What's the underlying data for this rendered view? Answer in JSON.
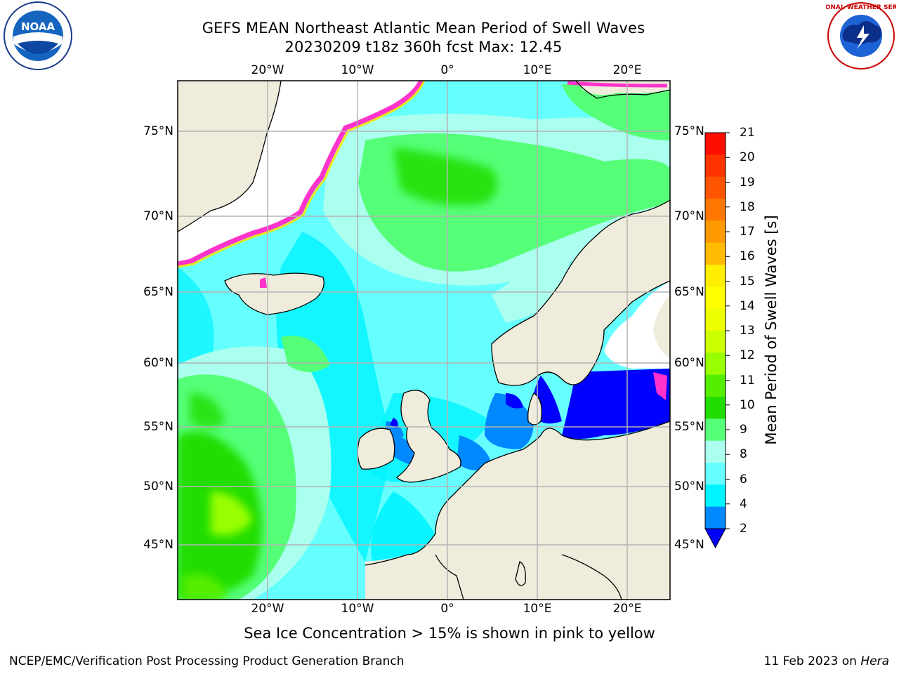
{
  "header": {
    "title_line1": "GEFS MEAN Northeast Atlantic Mean Period of Swell Waves",
    "title_line2": "20230209 t18z 360h fcst   Max: 12.45"
  },
  "logos": {
    "left": {
      "name": "NOAA",
      "text": "NOAA"
    },
    "right": {
      "name": "National Weather Service",
      "text": "NATIONAL WEATHER SERVICE"
    }
  },
  "map": {
    "lon_labels_top": [
      "20°W",
      "10°W",
      "0°",
      "10°E",
      "20°E"
    ],
    "lon_labels_bottom": [
      "20°W",
      "10°W",
      "0°",
      "10°E",
      "20°E"
    ],
    "lat_labels_left": [
      "75°N",
      "70°N",
      "65°N",
      "60°N",
      "55°N",
      "50°N",
      "45°N"
    ],
    "lat_labels_right": [
      "75°N",
      "70°N",
      "65°N",
      "60°N",
      "55°N",
      "50°N",
      "45°N"
    ],
    "colors": {
      "land": "#efecdc",
      "gridline": "#b4b4b4",
      "coast": "#000000",
      "ice_pink": "#ff33cc",
      "ice_yellow": "#f5e600"
    }
  },
  "colorbar": {
    "label": "Mean Period of Swell Waves [s]",
    "ticks": [
      "21",
      "20",
      "19",
      "18",
      "17",
      "16",
      "15",
      "14",
      "13",
      "12",
      "11",
      "10",
      "9",
      "8",
      "6",
      "4",
      "2"
    ],
    "bin_colors_top_to_bottom": [
      "#ff0d00",
      "#ff3300",
      "#ff5500",
      "#ff7700",
      "#ff9900",
      "#ffbb00",
      "#ffee00",
      "#ffff00",
      "#eeff00",
      "#ccff00",
      "#99ff00",
      "#55ee00",
      "#22dd00",
      "#55ff77",
      "#aaffee",
      "#66ffff",
      "#00f4ff",
      "#0088ff"
    ],
    "under_color": "#0000ff"
  },
  "note": "Sea Ice Concentration > 15% is shown in pink to yellow",
  "footer": {
    "left": "NCEP/EMC/Verification Post Processing Product Generation Branch",
    "right_date": "11 Feb 2023 on ",
    "right_host": "Hera"
  }
}
